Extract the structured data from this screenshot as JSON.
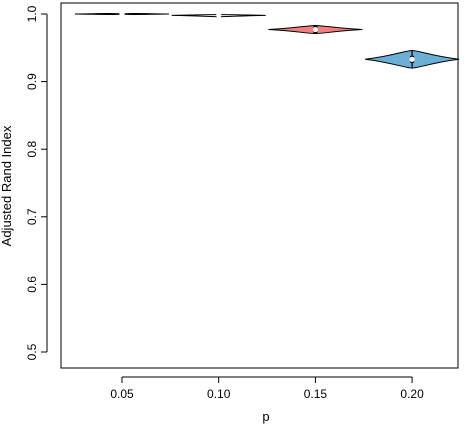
{
  "chart_data": {
    "type": "violin",
    "xlabel": "p",
    "ylabel": "Adjusted Rand Index",
    "categories": [
      "0.05",
      "0.10",
      "0.15",
      "0.20"
    ],
    "ylim": [
      0.5,
      1.0
    ],
    "y_ticks": [
      0.5,
      0.6,
      0.7,
      0.8,
      0.9,
      1.0
    ],
    "y_tick_labels": [
      "0.5",
      "0.6",
      "0.7",
      "0.8",
      "0.9",
      "1.0"
    ],
    "grid": false,
    "legend": "none",
    "violins": [
      {
        "category": "0.05",
        "median": 1.0,
        "min": 1.0,
        "max": 1.0,
        "fill": "#ffffff"
      },
      {
        "category": "0.10",
        "median": 0.998,
        "min": 0.996,
        "max": 0.999,
        "fill": "#ffffff"
      },
      {
        "category": "0.15",
        "median": 0.977,
        "min": 0.971,
        "max": 0.983,
        "fill": "#f08080"
      },
      {
        "category": "0.20",
        "median": 0.933,
        "min": 0.92,
        "max": 0.946,
        "fill": "#6baed6"
      }
    ]
  }
}
